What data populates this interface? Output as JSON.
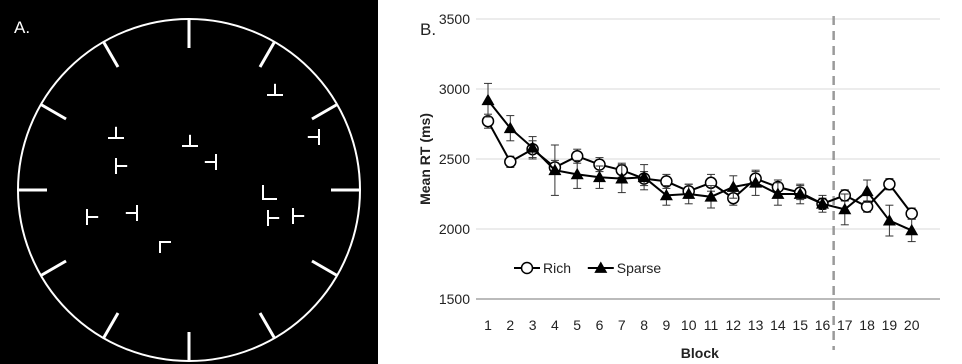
{
  "panel_a": {
    "label": "A.",
    "colors": {
      "background": "#000000",
      "stroke": "#ffffff"
    }
  },
  "chart_data": {
    "type": "line",
    "panel_label": "B.",
    "title": "",
    "xlabel": "Block",
    "ylabel": "Mean RT (ms)",
    "ylim": [
      1500,
      3500
    ],
    "yticks": [
      1500,
      2000,
      2500,
      3000,
      3500
    ],
    "x": [
      1,
      2,
      3,
      4,
      5,
      6,
      7,
      8,
      9,
      10,
      11,
      12,
      13,
      14,
      15,
      16,
      17,
      18,
      19,
      20
    ],
    "x_tick_labels": [
      "1",
      "2",
      "3",
      "4",
      "5",
      "6",
      "7",
      "8",
      "9",
      "10",
      "11",
      "12",
      "13",
      "14",
      "15",
      "16",
      "17",
      "18",
      "19",
      "20"
    ],
    "grid": "horizontal",
    "legend_position": "bottom-left",
    "divider_between_blocks": [
      16,
      17
    ],
    "series": [
      {
        "name": "Rich",
        "marker": "open-circle",
        "color": "#000000",
        "values": [
          2770,
          2480,
          2570,
          2440,
          2520,
          2460,
          2420,
          2360,
          2340,
          2270,
          2330,
          2220,
          2360,
          2300,
          2260,
          2180,
          2240,
          2160,
          2320,
          2110
        ],
        "errors": [
          50,
          40,
          60,
          50,
          50,
          50,
          50,
          50,
          50,
          50,
          60,
          50,
          50,
          50,
          50,
          40,
          40,
          40,
          40,
          40
        ]
      },
      {
        "name": "Sparse",
        "marker": "filled-triangle",
        "color": "#000000",
        "values": [
          2920,
          2720,
          2580,
          2420,
          2390,
          2370,
          2360,
          2370,
          2240,
          2250,
          2230,
          2300,
          2330,
          2250,
          2250,
          2180,
          2140,
          2270,
          2060,
          1990
        ],
        "errors": [
          120,
          90,
          80,
          180,
          100,
          80,
          100,
          90,
          70,
          70,
          80,
          80,
          90,
          80,
          70,
          60,
          110,
          80,
          110,
          80
        ]
      }
    ]
  }
}
